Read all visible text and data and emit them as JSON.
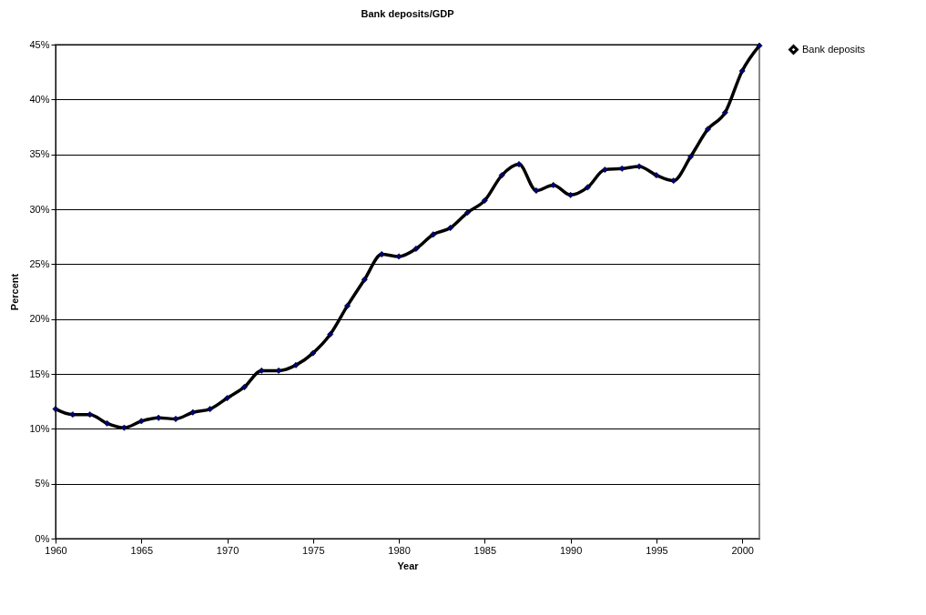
{
  "chart_data": {
    "type": "line",
    "title": "Bank deposits/GDP",
    "xlabel": "Year",
    "ylabel": "Percent",
    "x": [
      1960,
      1961,
      1962,
      1963,
      1964,
      1965,
      1966,
      1967,
      1968,
      1969,
      1970,
      1971,
      1972,
      1973,
      1974,
      1975,
      1976,
      1977,
      1978,
      1979,
      1980,
      1981,
      1982,
      1983,
      1984,
      1985,
      1986,
      1987,
      1988,
      1989,
      1990,
      1991,
      1992,
      1993,
      1994,
      1995,
      1996,
      1997,
      1998,
      1999,
      2000,
      2001
    ],
    "series": [
      {
        "name": "Bank deposits",
        "color": "#000000",
        "values": [
          11.8,
          11.3,
          11.3,
          10.5,
          10.1,
          10.7,
          11.0,
          10.9,
          11.5,
          11.8,
          12.8,
          13.8,
          15.3,
          15.3,
          15.8,
          16.9,
          18.6,
          21.2,
          23.6,
          25.9,
          25.7,
          26.4,
          27.7,
          28.3,
          29.7,
          30.8,
          33.1,
          34.1,
          31.7,
          32.2,
          31.3,
          32.0,
          33.6,
          33.7,
          33.9,
          33.1,
          32.6,
          34.8,
          37.3,
          38.8,
          42.6,
          44.9
        ]
      }
    ],
    "xlim": [
      1960,
      2001
    ],
    "xticks": [
      1960,
      1965,
      1970,
      1975,
      1980,
      1985,
      1990,
      1995,
      2000
    ],
    "ylim": [
      0,
      45
    ],
    "yticks": [
      {
        "value": 0,
        "label": "0%"
      },
      {
        "value": 5,
        "label": "5%"
      },
      {
        "value": 10,
        "label": "10%"
      },
      {
        "value": 15,
        "label": "15%"
      },
      {
        "value": 20,
        "label": "20%"
      },
      {
        "value": 25,
        "label": "25%"
      },
      {
        "value": 30,
        "label": "30%"
      },
      {
        "value": 35,
        "label": "35%"
      },
      {
        "value": 40,
        "label": "40%"
      },
      {
        "value": 45,
        "label": "45%"
      }
    ],
    "grid": "y",
    "legend": "right",
    "marker": "diamond",
    "line_style": "solid"
  }
}
